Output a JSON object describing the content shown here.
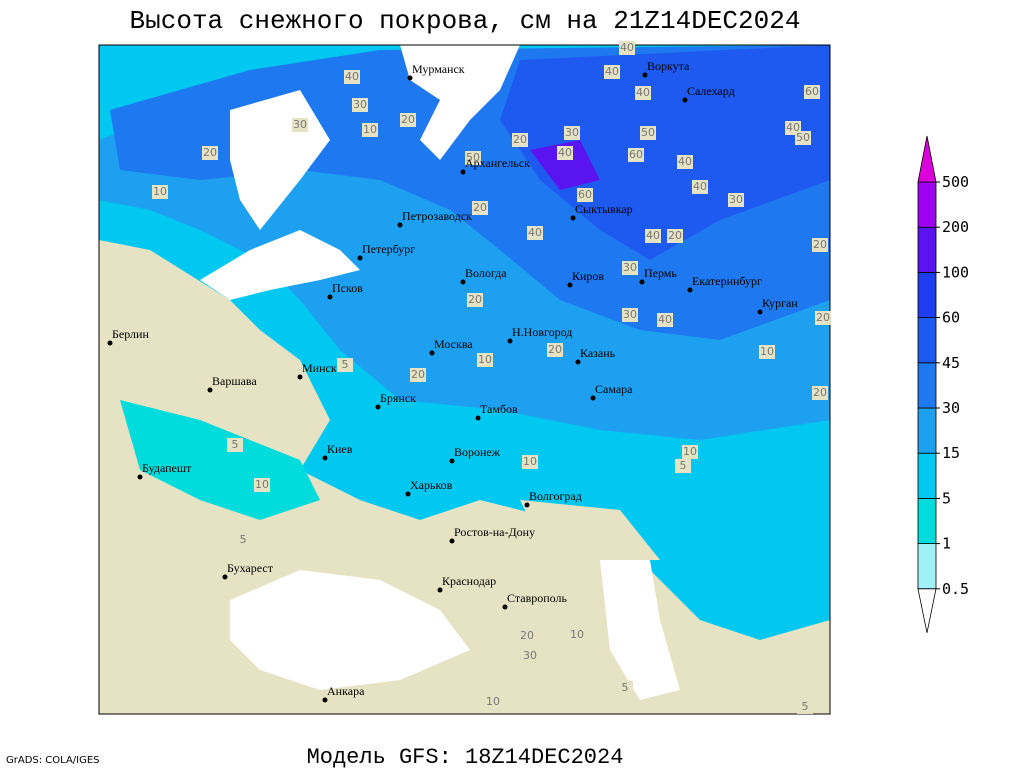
{
  "title": "Высота снежного покрова, см на 21Z14DEC2024",
  "footer": "Модель GFS: 18Z14DEC2024",
  "credit": "GrADS: COLA/IGES",
  "legend": {
    "levels": [
      0.5,
      1,
      5,
      15,
      30,
      45,
      60,
      100,
      200,
      500
    ],
    "colors": [
      "#ffffff",
      "#a0f0f8",
      "#00dcdc",
      "#00c8f0",
      "#1ea0f0",
      "#1e78f0",
      "#1e5af0",
      "#1e3cf0",
      "#5a14f0",
      "#a000f0",
      "#dc00dc"
    ]
  },
  "cities": [
    "Мурманск",
    "Воркута",
    "Салехард",
    "Архангельск",
    "Сыктывкар",
    "Петрозаводск",
    "Петербург",
    "Вологда",
    "Киров",
    "Пермь",
    "Екатеринбург",
    "Курган",
    "Псков",
    "Берлин",
    "Н.Новгород",
    "Казань",
    "Москва",
    "Минск",
    "Варшава",
    "Самара",
    "Брянск",
    "Тамбов",
    "Киев",
    "Воронеж",
    "Будапешт",
    "Харьков",
    "Волгоград",
    "Ростов-на-Дону",
    "Бухарест",
    "Краснодар",
    "Ставрополь",
    "Анкара"
  ],
  "contour_labels": [
    30,
    20,
    10,
    30,
    10,
    20,
    40,
    50,
    20,
    30,
    40,
    60,
    50,
    40,
    60,
    40,
    30,
    40,
    20,
    40,
    40,
    20,
    30,
    40,
    30,
    20,
    20,
    20,
    5,
    10,
    10,
    5,
    5,
    10,
    10,
    5,
    10,
    20,
    20,
    10,
    30,
    10,
    5,
    5,
    60,
    40,
    50,
    40,
    40,
    20,
    20
  ]
}
